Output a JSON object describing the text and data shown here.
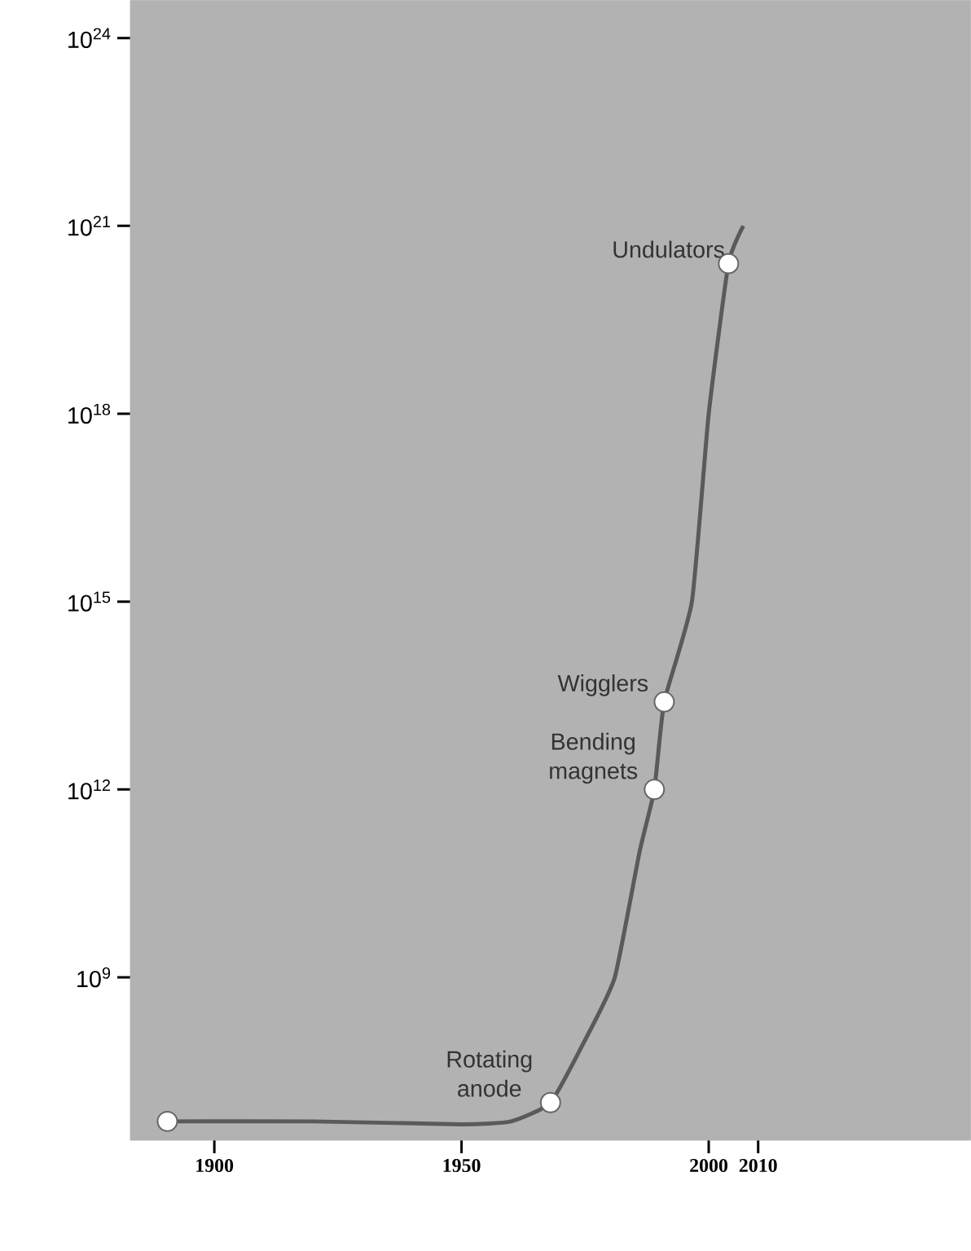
{
  "chart_data": {
    "type": "line",
    "log": "y",
    "xlim": [
      1883,
      2053
    ],
    "ylim": [
      2500000,
      4e+24
    ],
    "xticks": [
      1900,
      1950,
      2000,
      2010
    ],
    "yticks": [
      {
        "value": 1000000000.0,
        "label": "10$^{9}$"
      },
      {
        "value": 1000000000000.0,
        "label": "10$^{12}$"
      },
      {
        "value": 1000000000000000.0,
        "label": "10$^{15}$"
      },
      {
        "value": 1e+18,
        "label": "10$^{18}$"
      },
      {
        "value": 1e+21,
        "label": "10$^{21}$"
      },
      {
        "value": 1e+24,
        "label": "10$^{24}$"
      }
    ],
    "grid": false,
    "series": [
      {
        "color": "#5a5a5a",
        "marker": "none",
        "x": [
          1890.5,
          1920,
          1950,
          1960,
          1968,
          1975,
          1981,
          1986,
          1989,
          1991,
          1996.6,
          2000,
          2004,
          2007
        ],
        "values": [
          5000000,
          5000000,
          4500000,
          5000000,
          10000000,
          100000000,
          1000000000,
          100000000000,
          1000000000000,
          25000000000000,
          1000000000000000.0,
          1e+18,
          2.5e+20,
          1e+21
        ]
      },
      {
        "type": "scatter",
        "color": "#ffffff",
        "marker": "circle",
        "x": [
          1890.5,
          1968,
          1989,
          1991,
          2004
        ],
        "values": [
          5000000,
          10000000,
          1000000000000,
          25000000000000,
          2.5e+20
        ]
      }
    ],
    "annotations": [
      {
        "text": "Undulators",
        "x": 2004,
        "y": 2.5e+20
      },
      {
        "text": "Wigglers",
        "x": 1991,
        "y": 25000000000000
      },
      {
        "text": "Bending magnets",
        "x": 1989,
        "y": 1000000000000
      },
      {
        "text": "Rotating anode",
        "x": 1968,
        "y": 10000000
      }
    ]
  }
}
